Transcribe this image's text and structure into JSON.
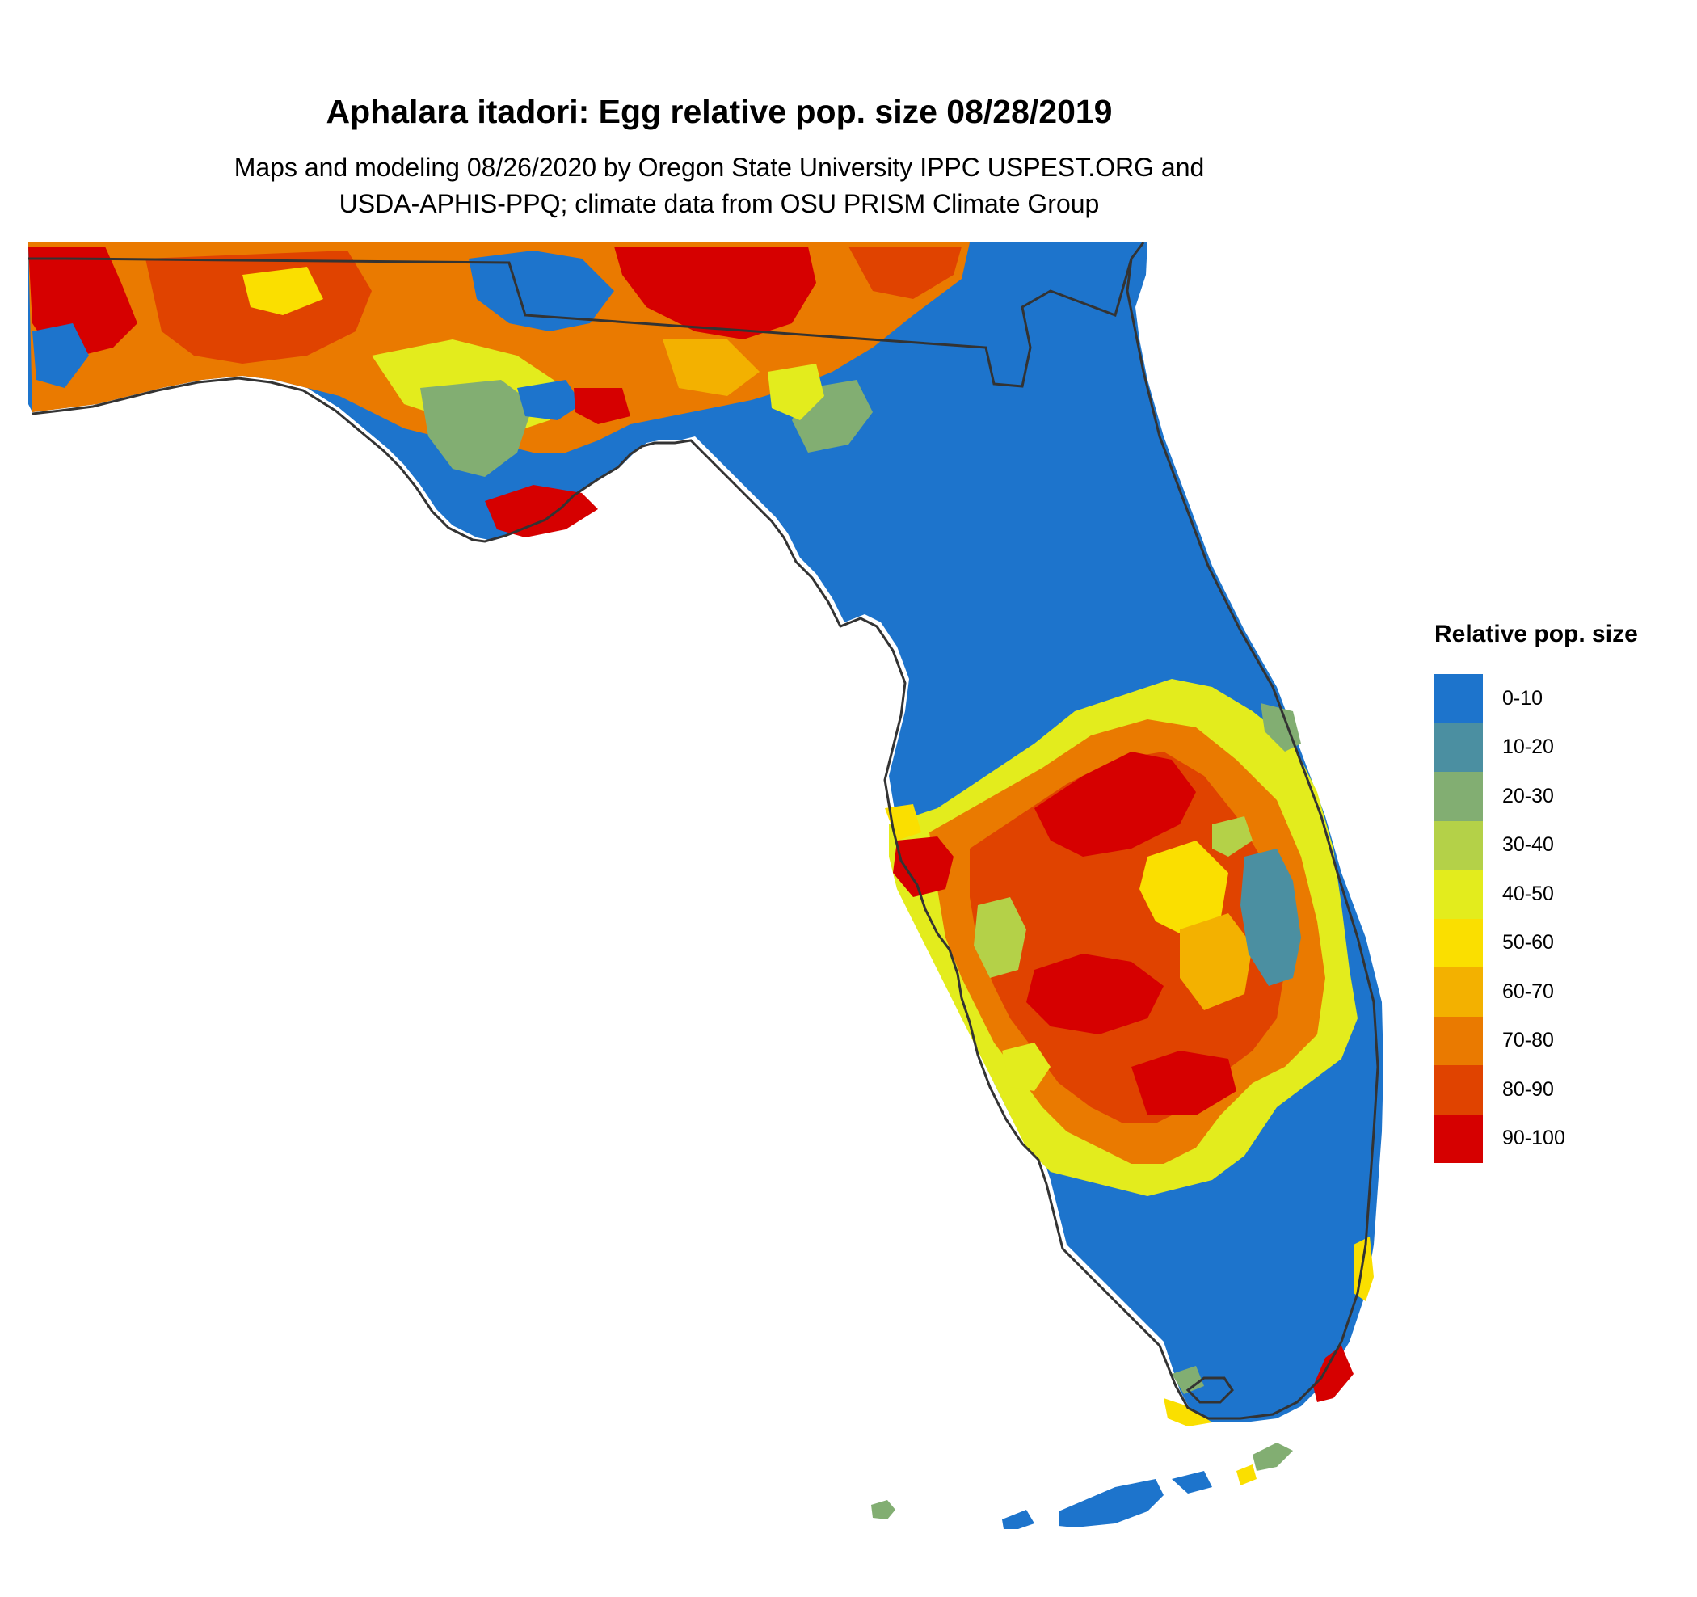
{
  "title": "Aphalara itadori: Egg relative pop. size 08/28/2019",
  "subtitle_line1": "Maps and modeling 08/26/2020 by Oregon State University IPPC USPEST.ORG and",
  "subtitle_line2": "USDA-APHIS-PPQ; climate data from OSU PRISM Climate Group",
  "legend": {
    "title": "Relative pop. size",
    "items": [
      {
        "label": "0-10",
        "color": "#1d74cc"
      },
      {
        "label": "10-20",
        "color": "#4b8fa1"
      },
      {
        "label": "20-30",
        "color": "#82ae72"
      },
      {
        "label": "30-40",
        "color": "#b4d148"
      },
      {
        "label": "40-50",
        "color": "#e3ec1d"
      },
      {
        "label": "50-60",
        "color": "#fadf00"
      },
      {
        "label": "60-70",
        "color": "#f3b100"
      },
      {
        "label": "70-80",
        "color": "#ea7a00"
      },
      {
        "label": "80-90",
        "color": "#e04300"
      },
      {
        "label": "90-100",
        "color": "#d60000"
      }
    ]
  }
}
